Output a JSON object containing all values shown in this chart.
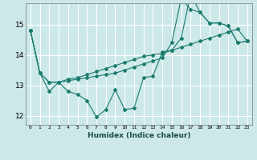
{
  "title": "",
  "xlabel": "Humidex (Indice chaleur)",
  "ylabel": "",
  "background_color": "#cce8e8",
  "grid_color": "#ffffff",
  "line_color": "#1a7a6e",
  "xlim": [
    -0.5,
    23.5
  ],
  "ylim": [
    11.7,
    15.7
  ],
  "yticks": [
    12,
    13,
    14,
    15
  ],
  "xticks": [
    0,
    1,
    2,
    3,
    4,
    5,
    6,
    7,
    8,
    9,
    10,
    11,
    12,
    13,
    14,
    15,
    16,
    17,
    18,
    19,
    20,
    21,
    22,
    23
  ],
  "series": [
    [
      14.8,
      13.4,
      12.8,
      13.1,
      12.8,
      12.7,
      12.5,
      11.95,
      12.2,
      12.85,
      12.2,
      12.25,
      13.25,
      13.3,
      14.1,
      14.15,
      14.55,
      16.0,
      15.4,
      15.05,
      15.05,
      14.95,
      14.4,
      14.45
    ],
    [
      14.8,
      13.4,
      13.1,
      13.1,
      13.2,
      13.25,
      13.35,
      13.45,
      13.55,
      13.65,
      13.75,
      13.85,
      13.95,
      14.0,
      14.05,
      14.15,
      14.25,
      14.35,
      14.45,
      14.55,
      14.65,
      14.75,
      14.85,
      14.45
    ],
    [
      14.8,
      13.4,
      13.1,
      13.1,
      13.15,
      13.2,
      13.25,
      13.3,
      13.35,
      13.4,
      13.5,
      13.6,
      13.7,
      13.8,
      13.9,
      14.4,
      15.85,
      15.5,
      15.4,
      15.05,
      15.05,
      14.95,
      14.4,
      14.45
    ]
  ]
}
